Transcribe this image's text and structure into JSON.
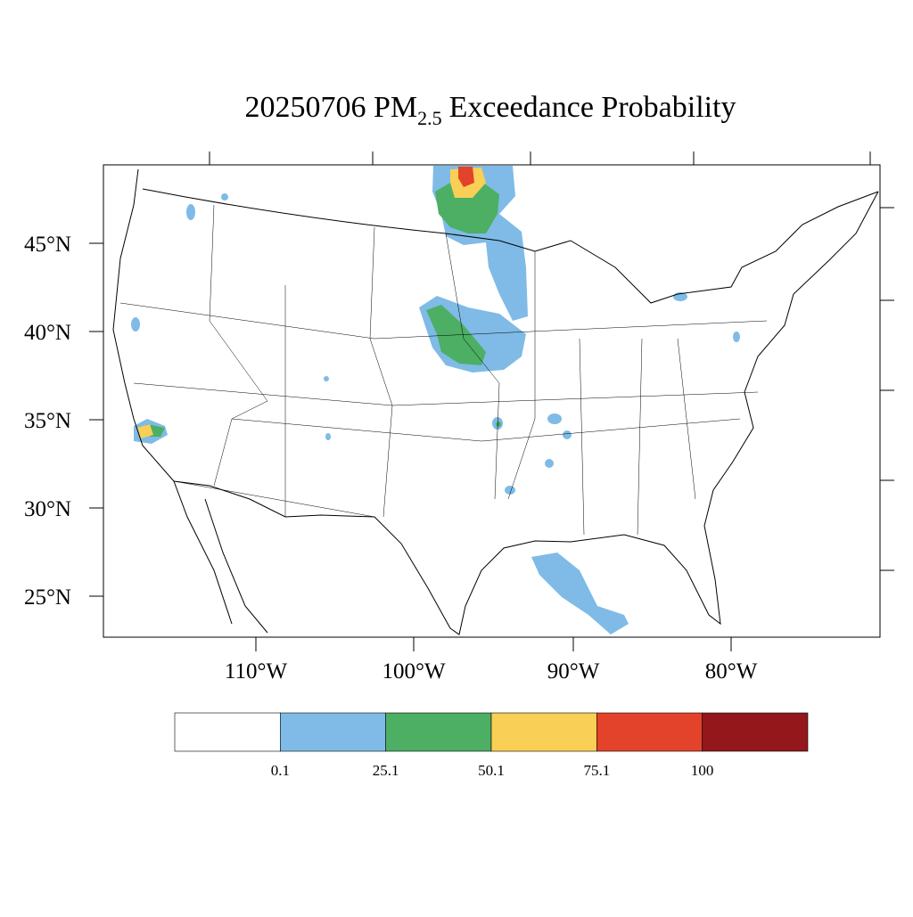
{
  "title": {
    "prefix": "20250706 PM",
    "subscript": "2.5",
    "suffix": "Exceedance Probability"
  },
  "lat_labels": [
    "45°N",
    "40°N",
    "35°N",
    "30°N",
    "25°N"
  ],
  "lon_labels": [
    "110°W",
    "100°W",
    "90°W",
    "80°W"
  ],
  "colorbar": {
    "colors": [
      "#ffffff",
      "#7fbbe6",
      "#4caf64",
      "#f9cf55",
      "#e3432a",
      "#93171b"
    ],
    "labels": [
      0.1,
      25.1,
      50.1,
      75.1,
      100
    ]
  }
}
